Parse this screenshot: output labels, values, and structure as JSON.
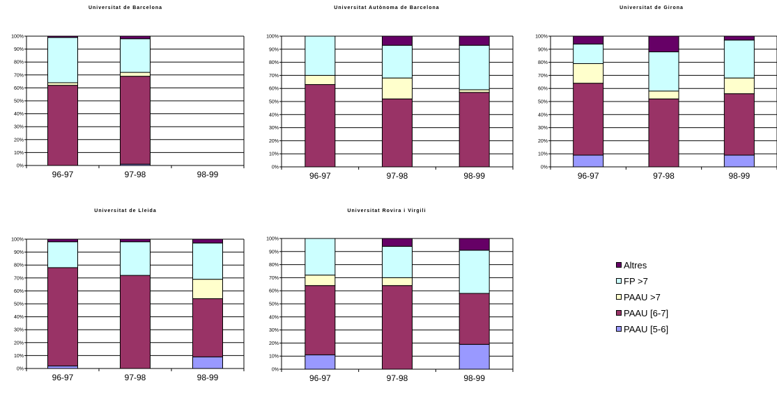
{
  "colors": {
    "Altres": "#660066",
    "FP >7": "#ccffff",
    "PAAU >7": "#ffffcc",
    "PAAU [6-7]": "#993366",
    "PAAU [5-6]": "#9999ff"
  },
  "legend": {
    "items": [
      {
        "label": "Altres",
        "color": "#660066"
      },
      {
        "label": "FP >7",
        "color": "#ccffff"
      },
      {
        "label": "PAAU >7",
        "color": "#ffffcc"
      },
      {
        "label": "PAAU [6-7]",
        "color": "#993366"
      },
      {
        "label": "PAAU [5-6]",
        "color": "#9999ff"
      }
    ]
  },
  "chart_data": [
    {
      "type": "bar",
      "stacked": true,
      "title": "Universitat de Barcelona",
      "categories": [
        "96-97",
        "97-98",
        "98-99"
      ],
      "yticks": [
        "0%",
        "10%",
        "20%",
        "30%",
        "40%",
        "50%",
        "60%",
        "70%",
        "80%",
        "90%",
        "100%"
      ],
      "ylim": [
        0,
        100
      ],
      "series": [
        {
          "name": "PAAU [5-6]",
          "values": [
            0,
            1,
            0
          ]
        },
        {
          "name": "PAAU [6-7]",
          "values": [
            62,
            68,
            0
          ]
        },
        {
          "name": "PAAU >7",
          "values": [
            2,
            3,
            0
          ]
        },
        {
          "name": "FP >7",
          "values": [
            35,
            26,
            0
          ]
        },
        {
          "name": "Altres",
          "values": [
            1,
            2,
            0
          ]
        }
      ]
    },
    {
      "type": "bar",
      "stacked": true,
      "title": "Universitat Autònoma de Barcelona",
      "categories": [
        "96-97",
        "97-98",
        "98-99"
      ],
      "yticks": [
        "0%",
        "10%",
        "20%",
        "30%",
        "40%",
        "50%",
        "60%",
        "70%",
        "80%",
        "90%",
        "100%"
      ],
      "ylim": [
        0,
        100
      ],
      "series": [
        {
          "name": "PAAU [5-6]",
          "values": [
            0,
            0,
            0
          ]
        },
        {
          "name": "PAAU [6-7]",
          "values": [
            63,
            52,
            57
          ]
        },
        {
          "name": "PAAU >7",
          "values": [
            7,
            16,
            2
          ]
        },
        {
          "name": "FP >7",
          "values": [
            30,
            25,
            34
          ]
        },
        {
          "name": "Altres",
          "values": [
            0,
            7,
            7
          ]
        }
      ]
    },
    {
      "type": "bar",
      "stacked": true,
      "title": "Universitat de Girona",
      "categories": [
        "96-97",
        "97-98",
        "98-99"
      ],
      "yticks": [
        "0%",
        "10%",
        "20%",
        "30%",
        "40%",
        "50%",
        "60%",
        "70%",
        "80%",
        "90%",
        "100%"
      ],
      "ylim": [
        0,
        100
      ],
      "series": [
        {
          "name": "PAAU [5-6]",
          "values": [
            9,
            0,
            9
          ]
        },
        {
          "name": "PAAU [6-7]",
          "values": [
            55,
            52,
            47
          ]
        },
        {
          "name": "PAAU >7",
          "values": [
            15,
            6,
            12
          ]
        },
        {
          "name": "FP >7",
          "values": [
            15,
            30,
            29
          ]
        },
        {
          "name": "Altres",
          "values": [
            6,
            12,
            3
          ]
        }
      ]
    },
    {
      "type": "bar",
      "stacked": true,
      "title": "Universitat de Lleida",
      "categories": [
        "96-97",
        "97-98",
        "98-99"
      ],
      "yticks": [
        "0%",
        "10%",
        "20%",
        "30%",
        "40%",
        "50%",
        "60%",
        "70%",
        "80%",
        "90%",
        "100%"
      ],
      "ylim": [
        0,
        100
      ],
      "series": [
        {
          "name": "PAAU [5-6]",
          "values": [
            2,
            0,
            9
          ]
        },
        {
          "name": "PAAU [6-7]",
          "values": [
            76,
            72,
            45
          ]
        },
        {
          "name": "PAAU >7",
          "values": [
            0,
            0,
            15
          ]
        },
        {
          "name": "FP >7",
          "values": [
            20,
            26,
            28
          ]
        },
        {
          "name": "Altres",
          "values": [
            2,
            2,
            3
          ]
        }
      ]
    },
    {
      "type": "bar",
      "stacked": true,
      "title": "Universitat Rovira i Virgili",
      "categories": [
        "96-97",
        "97-98",
        "98-99"
      ],
      "yticks": [
        "0%",
        "10%",
        "20%",
        "30%",
        "40%",
        "50%",
        "60%",
        "70%",
        "80%",
        "90%",
        "100%"
      ],
      "ylim": [
        0,
        100
      ],
      "series": [
        {
          "name": "PAAU [5-6]",
          "values": [
            11,
            0,
            19
          ]
        },
        {
          "name": "PAAU [6-7]",
          "values": [
            53,
            64,
            39
          ]
        },
        {
          "name": "PAAU >7",
          "values": [
            8,
            6,
            0
          ]
        },
        {
          "name": "FP >7",
          "values": [
            28,
            24,
            33
          ]
        },
        {
          "name": "Altres",
          "values": [
            0,
            6,
            9
          ]
        }
      ]
    }
  ]
}
